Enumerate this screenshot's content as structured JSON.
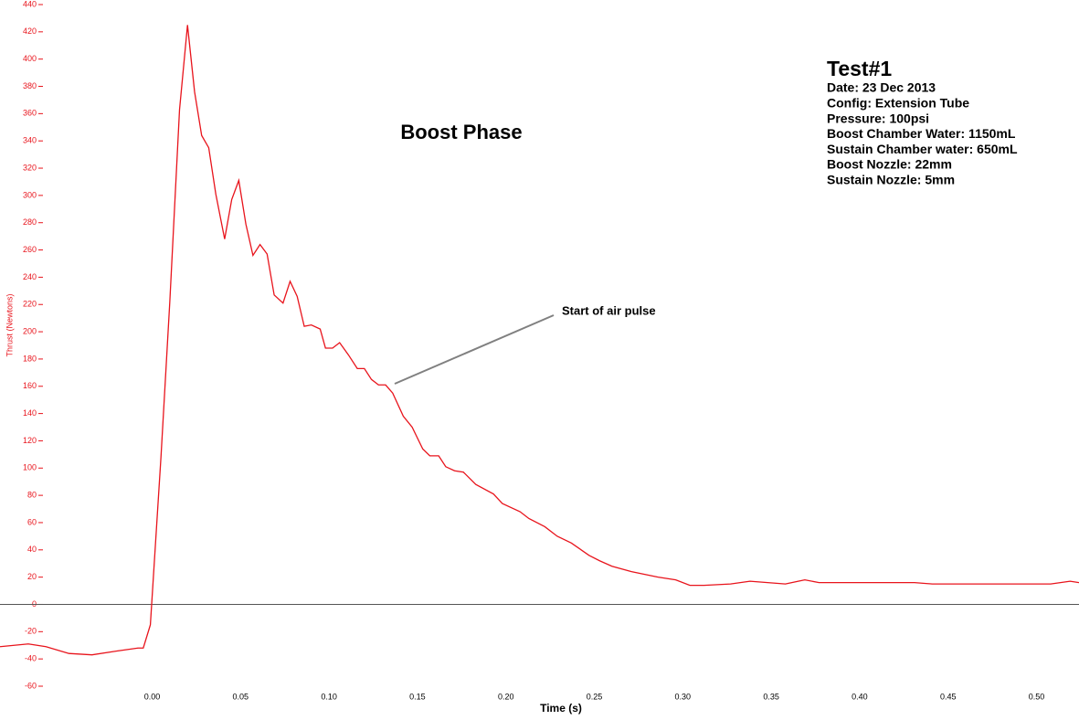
{
  "chart_data": {
    "type": "line",
    "title": "Boost Phase",
    "x_label": "Time (s)",
    "y_label": "Thrust (Newtons)",
    "annotation": "Start of air pulse",
    "info": {
      "heading": "Test#1",
      "lines": [
        "Date: 23 Dec 2013",
        "Config: Extension Tube",
        "Pressure: 100psi",
        "Boost Chamber Water: 1150mL",
        "Sustain Chamber water: 650mL",
        "Boost Nozzle: 22mm",
        "Sustain Nozzle: 5mm"
      ]
    },
    "x": [
      -0.086,
      -0.07,
      -0.06,
      -0.047,
      -0.034,
      -0.019,
      -0.008,
      -0.005,
      -0.001,
      0.005,
      0.01,
      0.0155,
      0.02,
      0.024,
      0.028,
      0.032,
      0.036,
      0.041,
      0.045,
      0.049,
      0.053,
      0.057,
      0.061,
      0.065,
      0.069,
      0.074,
      0.078,
      0.082,
      0.086,
      0.09,
      0.095,
      0.098,
      0.102,
      0.106,
      0.111,
      0.116,
      0.12,
      0.124,
      0.128,
      0.132,
      0.136,
      0.142,
      0.147,
      0.153,
      0.157,
      0.162,
      0.166,
      0.171,
      0.176,
      0.183,
      0.193,
      0.198,
      0.208,
      0.213,
      0.222,
      0.229,
      0.237,
      0.247,
      0.253,
      0.26,
      0.271,
      0.286,
      0.296,
      0.304,
      0.312,
      0.327,
      0.338,
      0.348,
      0.358,
      0.369,
      0.377,
      0.389,
      0.431,
      0.441,
      0.482,
      0.508,
      0.519,
      0.524
    ],
    "series": [
      {
        "name": "Thrust",
        "color": "#e8141c",
        "values": [
          -31,
          -29,
          -31,
          -36,
          -37,
          -34,
          -32,
          -32,
          -15,
          108,
          222,
          363,
          425,
          376,
          344,
          335,
          301,
          268,
          297,
          311,
          279,
          256,
          264,
          257,
          227,
          221,
          237,
          226,
          204,
          205,
          202,
          188,
          188,
          192,
          183,
          173,
          173,
          165,
          161,
          161,
          155,
          138,
          130,
          114,
          109,
          109,
          101,
          98,
          97,
          88,
          81,
          74,
          68,
          63,
          57,
          50,
          45,
          36,
          32,
          28,
          24,
          20,
          18,
          14,
          14,
          15,
          17,
          16,
          15,
          18,
          16,
          16,
          16,
          15,
          15,
          15,
          17,
          16
        ]
      }
    ],
    "xlim": [
      -0.086,
      0.524
    ],
    "ylim": [
      -60,
      440
    ],
    "xticks": [
      {
        "value": 0,
        "label": "0.00"
      },
      0.05,
      {
        "value": 0.1,
        "label": "0.10"
      },
      0.15,
      {
        "value": 0.2,
        "label": "0.20"
      },
      0.25,
      {
        "value": 0.3,
        "label": "0.30"
      },
      0.35,
      {
        "value": 0.4,
        "label": "0.40"
      },
      0.45,
      {
        "value": 0.5,
        "label": "0.50"
      }
    ],
    "yticks": [
      -60,
      -40,
      -20,
      0,
      20,
      40,
      60,
      80,
      100,
      120,
      140,
      160,
      180,
      200,
      220,
      240,
      260,
      280,
      300,
      320,
      340,
      360,
      380,
      400,
      420,
      440
    ],
    "ytick_color": "#e8141c"
  }
}
